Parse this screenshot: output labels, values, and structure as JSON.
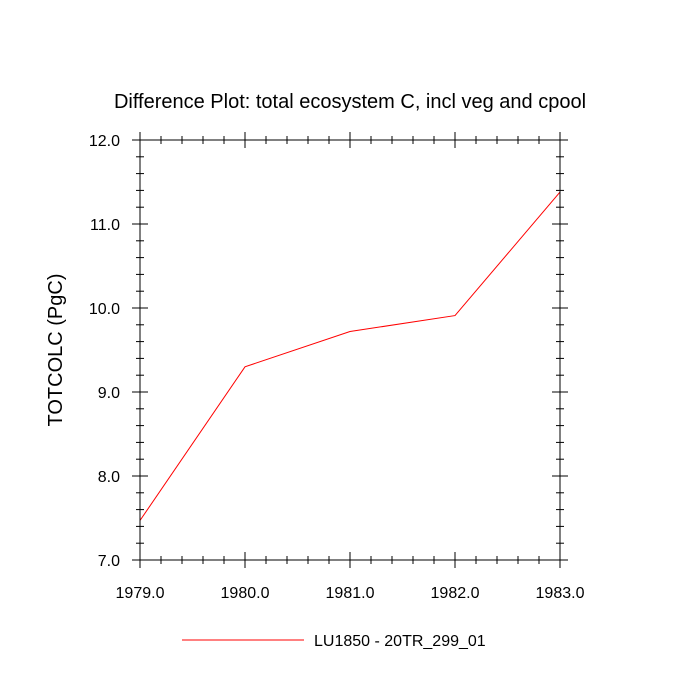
{
  "chart_data": {
    "type": "line",
    "title": "Difference Plot: total ecosystem C, incl veg and cpool",
    "xlabel": "",
    "ylabel": "TOTCOLC  (PgC)",
    "xlim": [
      1979.0,
      1983.0
    ],
    "ylim": [
      7.0,
      12.0
    ],
    "x_ticks": [
      1979.0,
      1980.0,
      1981.0,
      1982.0,
      1983.0
    ],
    "x_tick_labels": [
      "1979.0",
      "1980.0",
      "1981.0",
      "1982.0",
      "1983.0"
    ],
    "y_ticks": [
      7.0,
      8.0,
      9.0,
      10.0,
      11.0,
      12.0
    ],
    "y_tick_labels": [
      "7.0",
      "8.0",
      "9.0",
      "10.0",
      "11.0",
      "12.0"
    ],
    "y_minor_step": 0.2,
    "x_minor_step": 0.2,
    "grid": false,
    "legend_position": "bottom-center",
    "series": [
      {
        "name": "LU1850 - 20TR_299_01",
        "color": "#ff0000",
        "x": [
          1979.0,
          1980.0,
          1981.0,
          1982.0,
          1983.0
        ],
        "values": [
          7.47,
          9.3,
          9.72,
          9.91,
          11.38
        ]
      }
    ]
  }
}
